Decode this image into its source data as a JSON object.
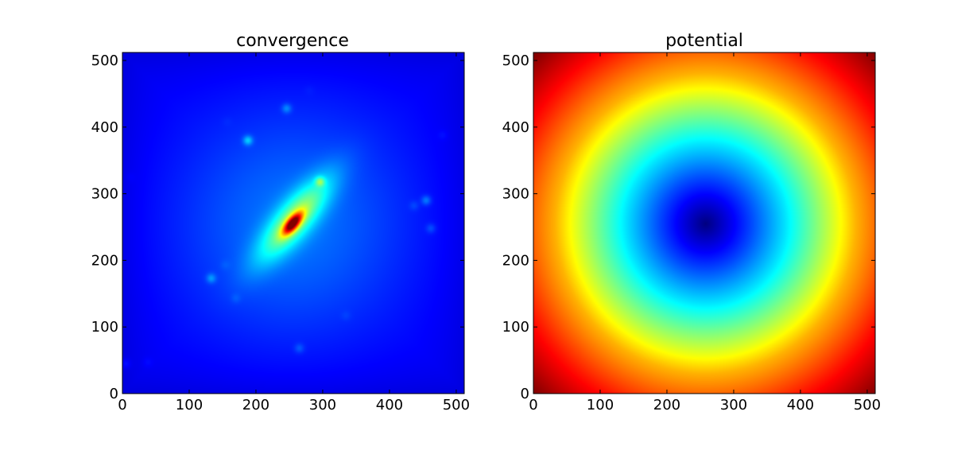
{
  "chart_data": [
    {
      "type": "heatmap",
      "title": "convergence",
      "colormap": "jet",
      "xlim": [
        0,
        512
      ],
      "ylim": [
        0,
        512
      ],
      "xticks": [
        0,
        100,
        200,
        300,
        400,
        500
      ],
      "yticks": [
        0,
        100,
        200,
        300,
        400,
        500
      ],
      "xlabel": "",
      "ylabel": "",
      "background_level": 0.12,
      "core": {
        "x": 255,
        "y": 255,
        "peak": 1.0
      },
      "elongated_halo": {
        "x": 258,
        "y": 262,
        "peak": 0.32,
        "angle_deg": 50,
        "extent_major": 55,
        "extent_minor": 18
      },
      "diffuse_halo": {
        "x": 255,
        "y": 255,
        "peak": 0.12,
        "extent": 120
      },
      "blobs": [
        {
          "x": 296,
          "y": 318,
          "level": 0.3
        },
        {
          "x": 188,
          "y": 380,
          "level": 0.27
        },
        {
          "x": 246,
          "y": 428,
          "level": 0.22
        },
        {
          "x": 133,
          "y": 173,
          "level": 0.22
        },
        {
          "x": 455,
          "y": 290,
          "level": 0.22
        },
        {
          "x": 437,
          "y": 282,
          "level": 0.16
        },
        {
          "x": 462,
          "y": 248,
          "level": 0.18
        },
        {
          "x": 265,
          "y": 68,
          "level": 0.18
        },
        {
          "x": 5,
          "y": 45,
          "level": 0.16
        },
        {
          "x": 38,
          "y": 47,
          "level": 0.14
        },
        {
          "x": 335,
          "y": 117,
          "level": 0.14
        },
        {
          "x": 157,
          "y": 408,
          "level": 0.13
        },
        {
          "x": 170,
          "y": 143,
          "level": 0.15
        },
        {
          "x": 154,
          "y": 193,
          "level": 0.14
        },
        {
          "x": 480,
          "y": 388,
          "level": 0.14
        },
        {
          "x": 12,
          "y": 325,
          "level": 0.13
        },
        {
          "x": 280,
          "y": 455,
          "level": 0.13
        }
      ]
    },
    {
      "type": "heatmap",
      "title": "potential",
      "colormap": "jet",
      "xlim": [
        0,
        512
      ],
      "ylim": [
        0,
        512
      ],
      "xticks": [
        0,
        100,
        200,
        300,
        400,
        500
      ],
      "yticks": [
        0,
        100,
        200,
        300,
        400,
        500
      ],
      "xlabel": "",
      "ylabel": "",
      "minimum": {
        "x": 258,
        "y": 255,
        "level": 0.0
      },
      "radial_profile": [
        {
          "r": 0,
          "level": 0.0
        },
        {
          "r": 70,
          "level": 0.2
        },
        {
          "r": 120,
          "level": 0.35
        },
        {
          "r": 165,
          "level": 0.5
        },
        {
          "r": 225,
          "level": 0.7
        },
        {
          "r": 290,
          "level": 0.85
        },
        {
          "r": 362,
          "level": 1.0
        }
      ]
    }
  ]
}
